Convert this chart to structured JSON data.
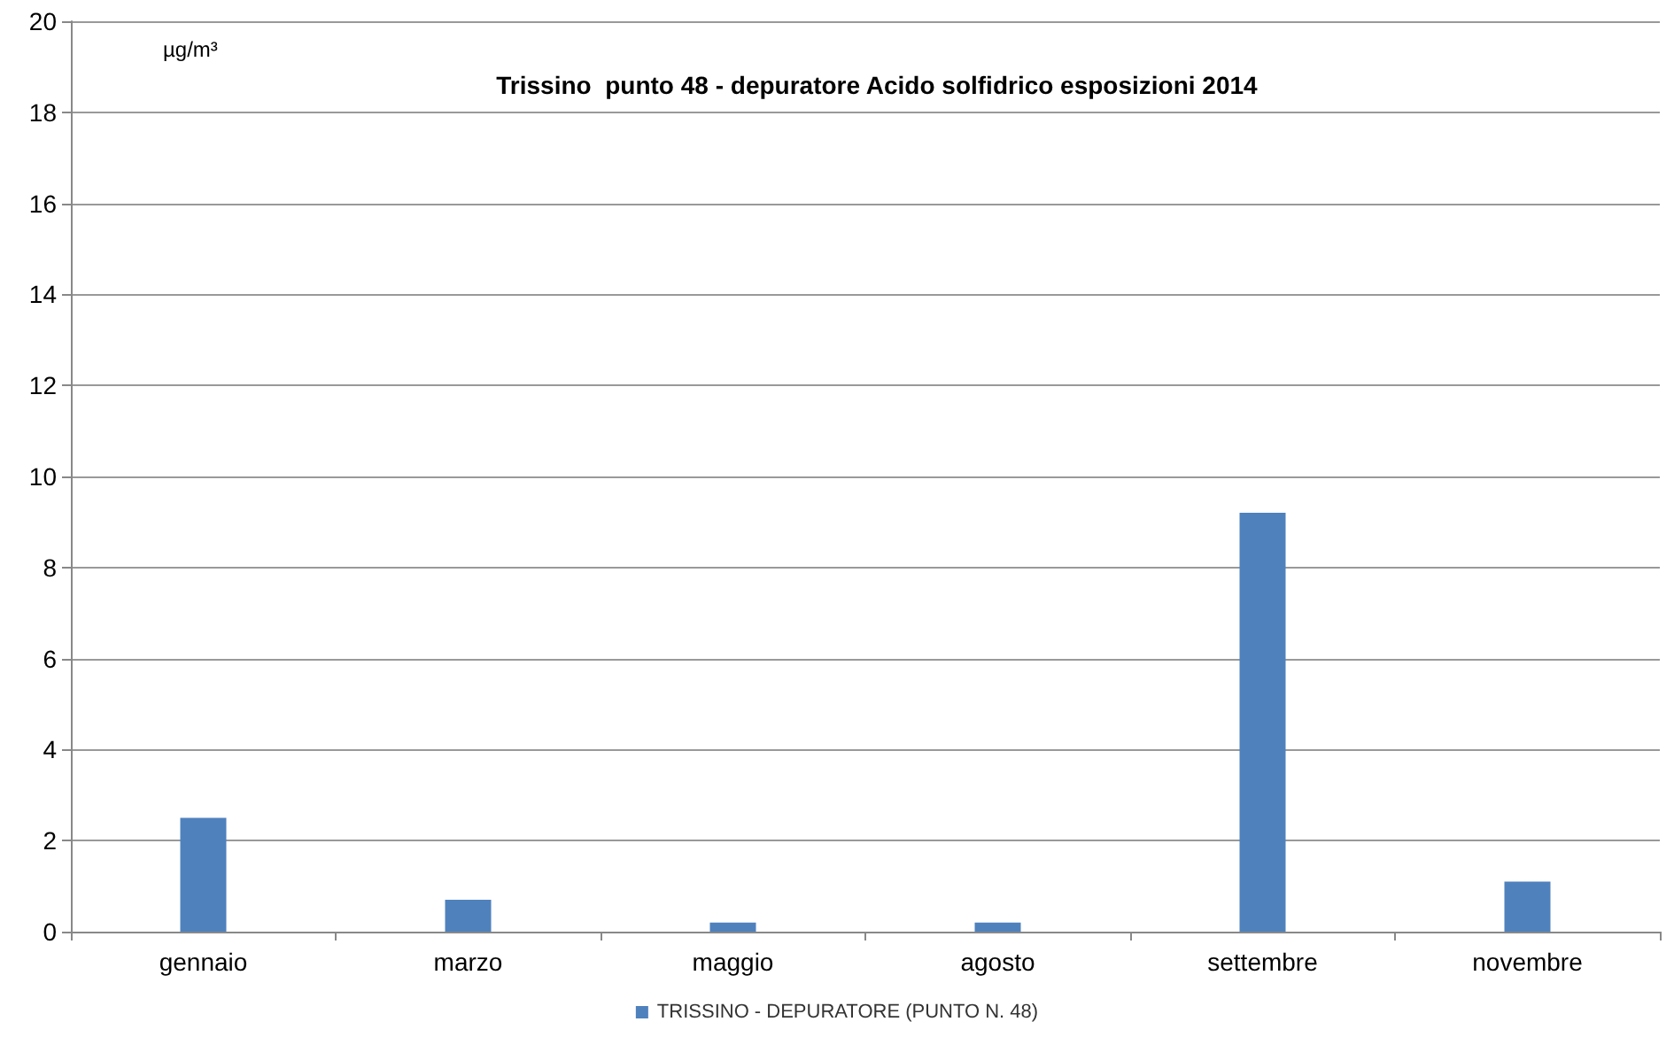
{
  "chart_data": {
    "type": "bar",
    "title": "Trissino  punto 48 - depuratore Acido solfidrico esposizioni 2014",
    "ylabel": "µg/m³",
    "categories": [
      "gennaio",
      "marzo",
      "maggio",
      "agosto",
      "settembre",
      "novembre"
    ],
    "series": [
      {
        "name": "TRISSINO - DEPURATORE (PUNTO N. 48)",
        "color": "#4f81bd",
        "values": [
          2.5,
          0.7,
          0.2,
          0.2,
          9.2,
          1.1
        ]
      }
    ],
    "ylim": [
      0,
      20
    ],
    "yticks": [
      0,
      2,
      4,
      6,
      8,
      10,
      12,
      14,
      16,
      18,
      20
    ],
    "grid": "y",
    "legend": "bottom"
  }
}
